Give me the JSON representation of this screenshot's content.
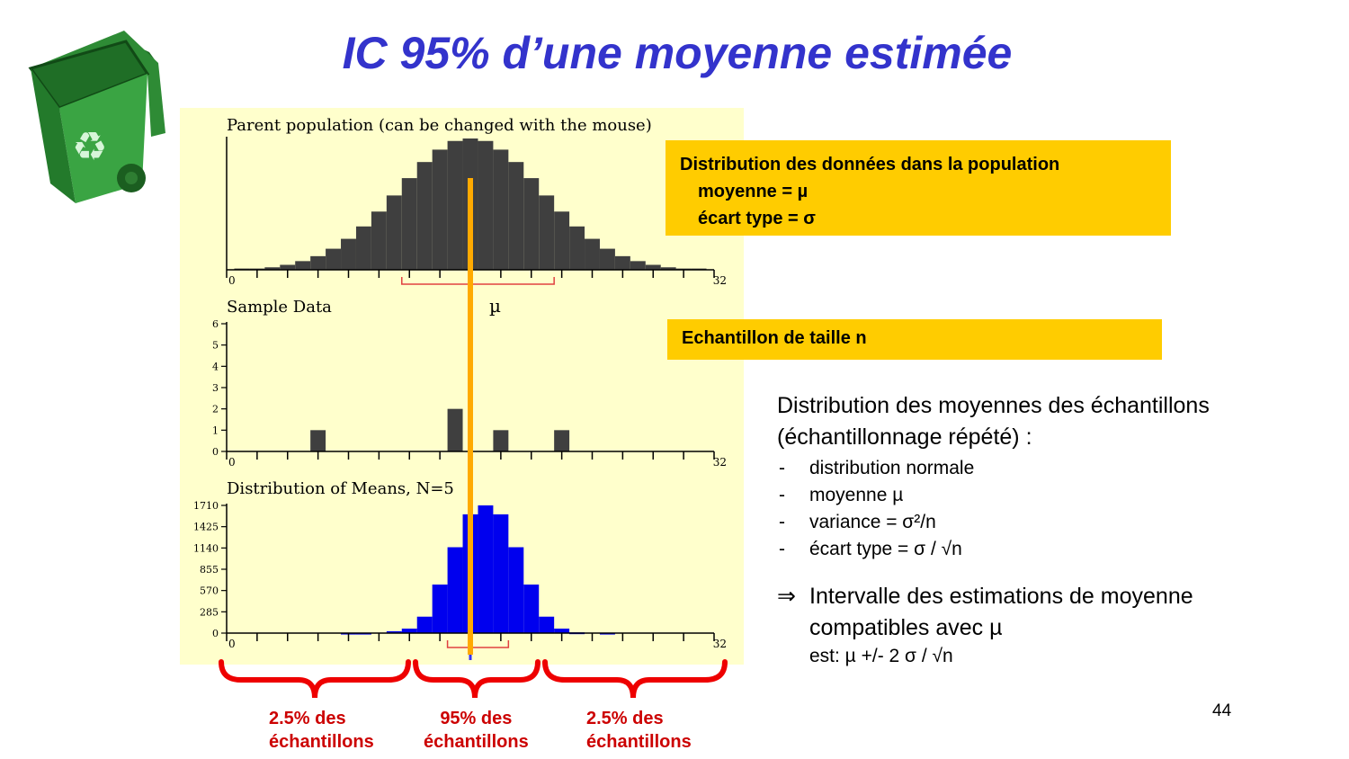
{
  "title": "IC 95% d’une moyenne estimée",
  "page_number": "44",
  "icons": {
    "bin": "recycle-bin-icon"
  },
  "colors": {
    "title": "#3333cc",
    "panel_bg": "#ffffcc",
    "callout": "#ffcc00",
    "mu_line": "#ffaa00",
    "means_bars": "#0000ee",
    "brackets": "#ee0000"
  },
  "callouts": {
    "population": {
      "heading": "Distribution des données dans la population",
      "mean_line": "moyenne =  µ",
      "sd_line": "écart type = σ"
    },
    "sample": "Echantillon de taille n"
  },
  "mu_label": "µ",
  "explanation": {
    "line1": "Distribution des moyennes des échantillons",
    "line2": "(échantillonnage répété) :",
    "bullets": [
      "distribution normale",
      "moyenne µ",
      "variance = σ²/n",
      "écart type = σ / √n"
    ],
    "implies_symbol": "⇒",
    "implies_line1": "Intervalle des estimations de moyenne",
    "implies_line2": "compatibles avec µ",
    "implies_line3": "est:  µ +/- 2 σ / √n"
  },
  "percent_labels": [
    {
      "line1": "2.5% des",
      "line2": "échantillons"
    },
    {
      "line1": "95% des",
      "line2": "échantillons"
    },
    {
      "line1": "2.5% des",
      "line2": "échantillons"
    }
  ],
  "chart_data": [
    {
      "type": "bar",
      "title": "Parent population (can be changed with the mouse)",
      "x_range": [
        0,
        32
      ],
      "x_tick_labels": [
        "0",
        "32"
      ],
      "values": [
        1,
        1,
        2,
        4,
        7,
        11,
        17,
        25,
        35,
        47,
        60,
        74,
        87,
        97,
        104,
        106,
        104,
        97,
        87,
        74,
        60,
        47,
        35,
        25,
        17,
        11,
        7,
        4,
        2,
        1,
        1
      ],
      "color": "#3f3f3f"
    },
    {
      "type": "bar",
      "title": "Sample Data",
      "x_range": [
        0,
        32
      ],
      "x_tick_labels": [
        "0",
        "32"
      ],
      "y_range": [
        0,
        6
      ],
      "y_ticks": [
        "0",
        "1",
        "2",
        "3",
        "4",
        "5",
        "6"
      ],
      "bars": [
        {
          "x": 6,
          "value": 1
        },
        {
          "x": 15,
          "value": 2
        },
        {
          "x": 18,
          "value": 1
        },
        {
          "x": 22,
          "value": 1
        }
      ],
      "color": "#3f3f3f"
    },
    {
      "type": "bar",
      "title": "Distribution of Means, N=5",
      "x_range": [
        0,
        32
      ],
      "x_tick_labels": [
        "0",
        "32"
      ],
      "y_range": [
        0,
        1710
      ],
      "y_ticks": [
        "0",
        "285",
        "570",
        "855",
        "1140",
        "1425",
        "1710"
      ],
      "values": [
        0,
        0,
        0,
        0,
        0,
        0,
        0,
        5,
        5,
        0,
        25,
        60,
        220,
        650,
        1150,
        1590,
        1720,
        1590,
        1150,
        650,
        220,
        60,
        10,
        0,
        5,
        0,
        0,
        0,
        0,
        0,
        0
      ],
      "color": "#0000ee"
    }
  ]
}
